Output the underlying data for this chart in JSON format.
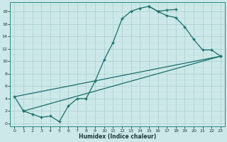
{
  "xlabel": "Humidex (Indice chaleur)",
  "bg_color": "#cce8e8",
  "line_color": "#1a6e6a",
  "grid_major_color": "#aacfcf",
  "grid_minor_color": "#bcdede",
  "xlim": [
    -0.5,
    23.5
  ],
  "ylim": [
    -0.5,
    19.5
  ],
  "xticks": [
    0,
    1,
    2,
    3,
    4,
    5,
    6,
    7,
    8,
    9,
    10,
    11,
    12,
    13,
    14,
    15,
    16,
    17,
    18,
    19,
    20,
    21,
    22,
    23
  ],
  "yticks": [
    0,
    2,
    4,
    6,
    8,
    10,
    12,
    14,
    16,
    18
  ],
  "line1_x": [
    0,
    1,
    2,
    3,
    4,
    5,
    6,
    7,
    8,
    9,
    10,
    11,
    12,
    13,
    14,
    15,
    16,
    17,
    18
  ],
  "line1_y": [
    4.3,
    2.0,
    1.5,
    1.0,
    1.2,
    0.3,
    2.8,
    4.0,
    4.0,
    6.8,
    10.2,
    13.0,
    16.8,
    18.0,
    18.5,
    18.8,
    18.0,
    18.2,
    18.3
  ],
  "line2_x": [
    15,
    16,
    17,
    18,
    19,
    20,
    21,
    22,
    23
  ],
  "line2_y": [
    18.8,
    18.0,
    17.3,
    17.0,
    15.5,
    13.5,
    11.8,
    11.8,
    10.8
  ],
  "line3_x": [
    1,
    23
  ],
  "line3_y": [
    2.0,
    10.8
  ],
  "line4_x": [
    0,
    23
  ],
  "line4_y": [
    4.3,
    10.8
  ]
}
